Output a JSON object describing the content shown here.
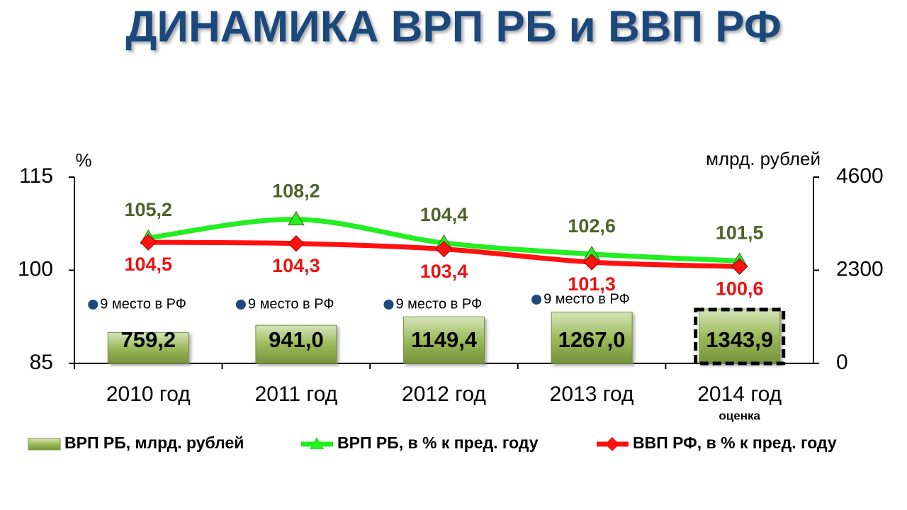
{
  "chart_data": {
    "type": "combo",
    "title": "ДИНАМИКА  ВРП РБ и ВВП РФ",
    "y_label": "%",
    "y2_label": "млрд. рублей",
    "categories": [
      "2010 год",
      "2011 год",
      "2012 год",
      "2013 год",
      "2014 год"
    ],
    "category_notes": [
      null,
      null,
      null,
      null,
      "оценка"
    ],
    "rank_notes": [
      "9 место в РФ",
      "9 место в РФ",
      "9 место в РФ",
      "9 место в РФ",
      null
    ],
    "ylim": [
      85,
      115
    ],
    "yticks": [
      85,
      100,
      115
    ],
    "y2lim": [
      0,
      4600
    ],
    "y2ticks": [
      0,
      2300,
      4600
    ],
    "series": [
      {
        "name": "ВРП РБ, млрд. рублей",
        "type": "bar",
        "axis": "y2",
        "color": "#9bbb59",
        "values": [
          759.2,
          941.0,
          1149.4,
          1267.0,
          1343.9
        ],
        "value_labels": [
          "759,2",
          "941,0",
          "1149,4",
          "1267,0",
          "1343,9"
        ]
      },
      {
        "name": "ВРП РБ, в % к пред. году",
        "type": "line",
        "marker": "triangle",
        "color": "#22ee22",
        "label_color": "#4f6228",
        "values": [
          105.2,
          108.2,
          104.4,
          102.6,
          101.5
        ],
        "value_labels": [
          "105,2",
          "108,2",
          "104,4",
          "102,6",
          "101,5"
        ]
      },
      {
        "name": "ВВП РФ, в % к пред. году",
        "type": "line",
        "marker": "diamond",
        "color": "#ff1111",
        "label_color": "#ee1111",
        "values": [
          104.5,
          104.3,
          103.4,
          101.3,
          100.6
        ],
        "value_labels": [
          "104,5",
          "104,3",
          "103,4",
          "101,3",
          "100,6"
        ]
      }
    ]
  }
}
